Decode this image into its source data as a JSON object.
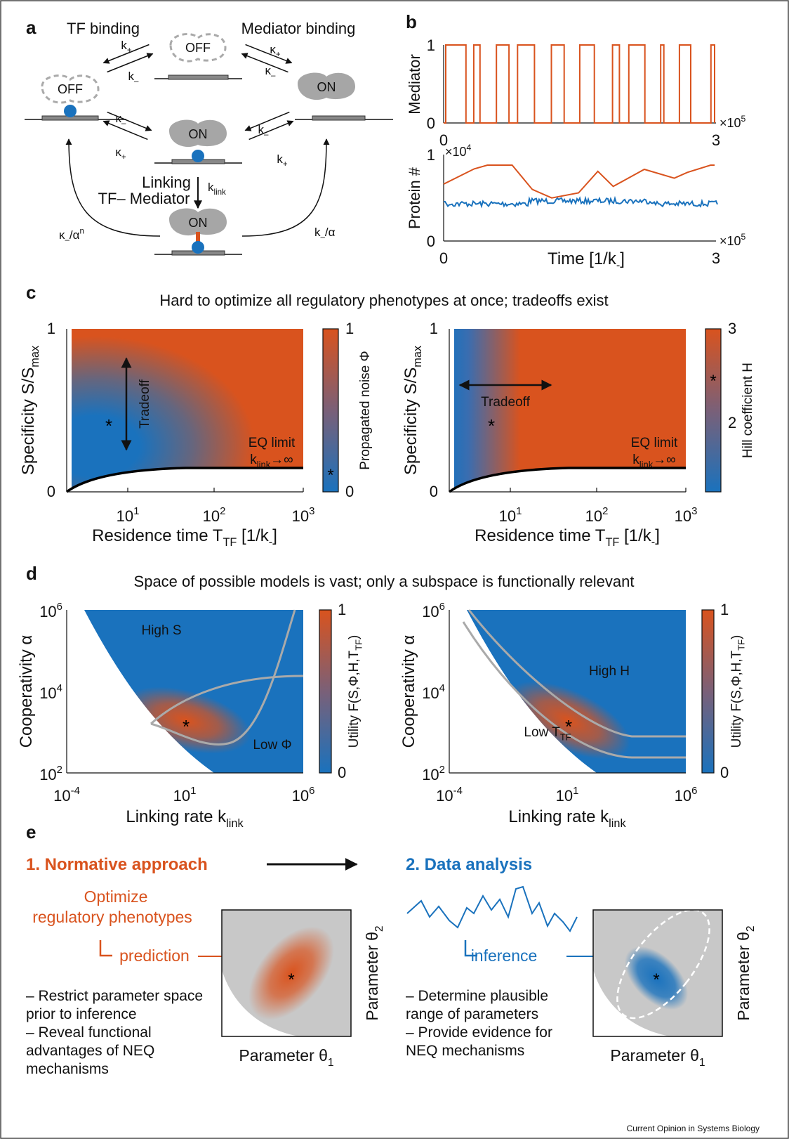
{
  "panel_a": {
    "label": "a",
    "tf_binding": "TF binding",
    "mediator_binding": "Mediator binding",
    "states": {
      "top": "OFF",
      "left": "OFF",
      "right": "ON",
      "center": "ON",
      "bottom": "ON"
    },
    "rates": [
      {
        "base": "k",
        "sub": "+"
      },
      {
        "base": "k",
        "sub": "–"
      },
      {
        "base": "κ",
        "sub": "+"
      },
      {
        "base": "κ",
        "sub": "–"
      },
      {
        "base": "κ",
        "sub": "–"
      },
      {
        "base": "κ",
        "sub": "+"
      },
      {
        "base": "k",
        "sub": "–"
      },
      {
        "base": "k",
        "sub": "+"
      }
    ],
    "linking": "Linking",
    "tf_mediator": "TF– Mediator",
    "k_link": {
      "base": "k",
      "sub": "link"
    },
    "left_return": {
      "base": "κ",
      "sub": "–",
      "rest": "/α",
      "sup": "n"
    },
    "right_return": {
      "base": "k",
      "sub": "–",
      "rest": "/α"
    }
  },
  "panel_b": {
    "label": "b",
    "mediator": {
      "y_label": "Mediator",
      "y_ticks": [
        1,
        0
      ],
      "x_ticks": [
        0,
        3
      ],
      "x_multiplier": {
        "base": "×10",
        "sup": 5
      }
    },
    "protein": {
      "y_label": "Protein #",
      "y_ticks": [
        1,
        0
      ],
      "y_multiplier": {
        "base": "×10",
        "sup": 4
      },
      "x_ticks": [
        0,
        3
      ],
      "x_multiplier": {
        "base": "×10",
        "sup": 5
      },
      "x_label": {
        "text": "Time  [1/k",
        "sub": "-",
        "end": "]"
      }
    }
  },
  "panel_c": {
    "label": "c",
    "title": "Hard to optimize all regulatory phenotypes at once; tradeoffs exist",
    "plots": [
      {
        "y_ticks": [
          1,
          0
        ],
        "x_ticks": [
          {
            "base": 10,
            "sup": 1
          },
          {
            "base": 10,
            "sup": 2
          },
          {
            "base": 10,
            "sup": 3
          }
        ],
        "y_label": {
          "text": "Specificity S/S",
          "sub": "max"
        },
        "x_label": {
          "text": "Residence time T",
          "sub": "TF",
          "mid": " [1/k",
          "sub2": "-",
          "end": "]"
        },
        "colorbar_ticks": [
          1,
          0
        ],
        "colorbar_label": "Propagated noise Φ",
        "tradeoff": "Tradeoff",
        "eq_limit": "EQ limit",
        "k_link": {
          "base": "k",
          "sub": "link",
          "rest": "→∞"
        }
      },
      {
        "y_ticks": [
          1,
          0
        ],
        "x_ticks": [
          {
            "base": 10,
            "sup": 1
          },
          {
            "base": 10,
            "sup": 2
          },
          {
            "base": 10,
            "sup": 3
          }
        ],
        "y_label": {
          "text": "Specificity S/S",
          "sub": "max"
        },
        "x_label": {
          "text": "Residence time T",
          "sub": "TF",
          "mid": " [1/k",
          "sub2": "-",
          "end": "]"
        },
        "colorbar_ticks": [
          3,
          2
        ],
        "colorbar_label": "Hill coefficient H",
        "tradeoff": "Tradeoff",
        "eq_limit": "EQ limit",
        "k_link": {
          "base": "k",
          "sub": "link",
          "rest": "→∞"
        }
      }
    ]
  },
  "panel_d": {
    "label": "d",
    "title": "Space of possible models is vast; only a subspace is functionally relevant",
    "plots": [
      {
        "y_ticks": [
          {
            "base": 10,
            "sup": 6
          },
          {
            "base": 10,
            "sup": 4
          },
          {
            "base": 10,
            "sup": 2
          }
        ],
        "x_ticks": [
          {
            "base": 10,
            "sup": -4
          },
          {
            "base": 10,
            "sup": 1
          },
          {
            "base": 10,
            "sup": 6
          }
        ],
        "y_label": "Cooperativity  α",
        "x_label": {
          "text": "Linking rate k",
          "sub": "link"
        },
        "colorbar_ticks": [
          1,
          0
        ],
        "colorbar_label": {
          "text": "Utility F(S,Φ,H,T",
          "sub": "TF",
          "end": ")"
        },
        "annotations": [
          {
            "text": "High S"
          },
          {
            "text": "Low Φ"
          }
        ]
      },
      {
        "y_ticks": [
          {
            "base": 10,
            "sup": 6
          },
          {
            "base": 10,
            "sup": 4
          },
          {
            "base": 10,
            "sup": 2
          }
        ],
        "x_ticks": [
          {
            "base": 10,
            "sup": -4
          },
          {
            "base": 10,
            "sup": 1
          },
          {
            "base": 10,
            "sup": 6
          }
        ],
        "y_label": "Cooperativity  α",
        "x_label": {
          "text": "Linking rate k",
          "sub": "link"
        },
        "colorbar_ticks": [
          1,
          0
        ],
        "colorbar_label": {
          "text": "Utility F(S,Φ,H,T",
          "sub": "TF",
          "end": ")"
        },
        "annotations": [
          {
            "text": "High H"
          },
          {
            "text": "Low T",
            "sub": "TF"
          }
        ]
      }
    ]
  },
  "panel_e": {
    "label": "e",
    "step1": "1. Normative approach",
    "step2": "2. Data analysis",
    "optimize": [
      "Optimize",
      "regulatory phenotypes"
    ],
    "prediction": "prediction",
    "inference": "inference",
    "left_bullets": [
      "– Restrict parameter space",
      "prior to inference",
      "– Reveal functional",
      "advantages of NEQ",
      "mechanisms"
    ],
    "right_bullets": [
      "– Determine plausible",
      "range of parameters",
      "– Provide evidence for",
      "NEQ mechanisms"
    ],
    "param1": {
      "text": "Parameter θ",
      "sub": 1
    },
    "param2": {
      "text": "Parameter θ",
      "sub": 2
    }
  },
  "credit": "Current Opinion in Systems Biology"
}
